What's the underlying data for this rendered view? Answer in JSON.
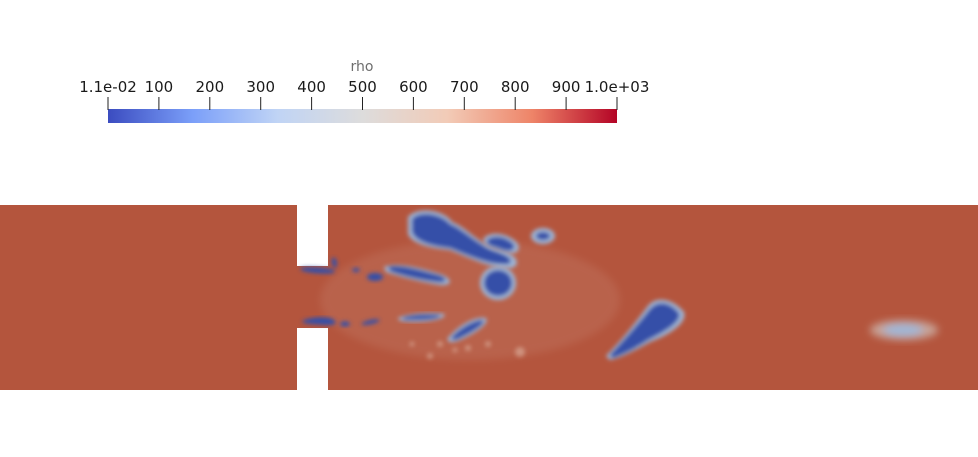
{
  "colorbar": {
    "title": "rho",
    "labels": [
      "1.1e-02",
      "100",
      "200",
      "300",
      "400",
      "500",
      "600",
      "700",
      "800",
      "900",
      "1.0e+03"
    ],
    "gradient": [
      "#3b4cc0",
      "#7b9ff9",
      "#c0d4f5",
      "#dddcdc",
      "#f2cbb7",
      "#ee8468",
      "#b40426"
    ]
  },
  "field": {
    "background_color": "#b4553d",
    "blob_color": "#3450a8",
    "halo_color": "#9fb6d6"
  }
}
